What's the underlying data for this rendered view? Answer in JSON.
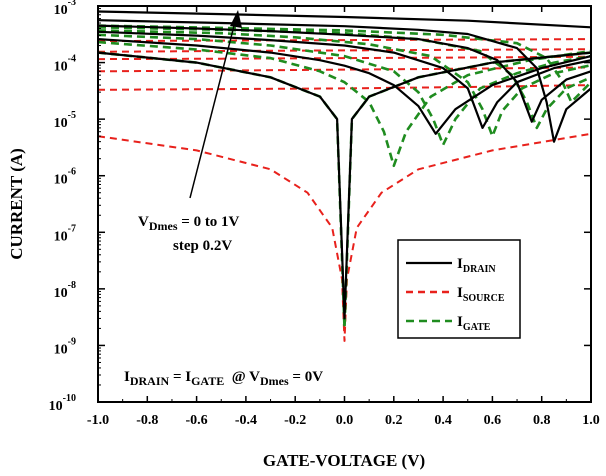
{
  "chart_data": {
    "type": "line",
    "title": "",
    "xlabel": "GATE-VOLTAGE (V)",
    "ylabel": "CURRENT (A)",
    "xlim": [
      -1.0,
      1.0
    ],
    "ylim": [
      1e-10,
      0.001
    ],
    "yscale": "log",
    "grid": false,
    "legend_position": "right-middle",
    "x_ticks": [
      "-1.0",
      "-0.8",
      "-0.6",
      "-0.4",
      "-0.2",
      "0.0",
      "0.2",
      "0.4",
      "0.6",
      "0.8",
      "1.0"
    ],
    "y_ticks": [
      {
        "base": "10",
        "exp": "-10"
      },
      {
        "base": "10",
        "exp": "-9"
      },
      {
        "base": "10",
        "exp": "-8"
      },
      {
        "base": "10",
        "exp": "-7"
      },
      {
        "base": "10",
        "exp": "-6"
      },
      {
        "base": "10",
        "exp": "-5"
      },
      {
        "base": "10",
        "exp": "-4"
      },
      {
        "base": "10",
        "exp": "-3"
      }
    ],
    "legend": [
      {
        "main": "I",
        "sub": "DRAIN",
        "color": "#000000",
        "style": "solid"
      },
      {
        "main": "I",
        "sub": "SOURCE",
        "color": "#e8211c",
        "style": "dashed"
      },
      {
        "main": "I",
        "sub": "GATE",
        "color": "#1f8c1f",
        "style": "dashed"
      }
    ],
    "annotations": {
      "vd_main": "V",
      "vd_sub": "Dmes",
      "vd_rest": " = 0 to 1V",
      "step": "step 0.2V",
      "eq_i1": "I",
      "eq_sub1": "DRAIN",
      "eq_mid": " = I",
      "eq_sub2": "GATE",
      "eq_at": "  @ V",
      "eq_sub3": "Dmes",
      "eq_end": " = 0V"
    },
    "colors": {
      "drain": "#000000",
      "source": "#e8211c",
      "gate": "#1f8c1f"
    },
    "series": [
      {
        "group": "drain",
        "vd": 0.0,
        "x": [
          -1.0,
          -0.6,
          -0.3,
          -0.1,
          -0.03,
          0.0,
          0.03,
          0.1,
          0.3,
          0.6,
          1.0
        ],
        "y": [
          0.00015,
          0.0001,
          5.5e-05,
          2.5e-05,
          1e-05,
          3e-09,
          1e-05,
          2.5e-05,
          5.5e-05,
          0.0001,
          0.00015
        ]
      },
      {
        "group": "drain",
        "vd": 0.2,
        "x": [
          -1.0,
          -0.6,
          -0.3,
          -0.1,
          0.0,
          0.1,
          0.2,
          0.3,
          0.37,
          0.45,
          0.6,
          0.8,
          1.0
        ],
        "y": [
          0.00026,
          0.0002,
          0.00015,
          0.00011,
          8.8e-05,
          6.5e-05,
          4e-05,
          1.7e-05,
          5.5e-06,
          1.5e-05,
          4e-05,
          8e-05,
          0.00013
        ]
      },
      {
        "group": "drain",
        "vd": 0.4,
        "x": [
          -1.0,
          -0.6,
          -0.3,
          0.0,
          0.2,
          0.4,
          0.5,
          0.56,
          0.62,
          0.7,
          0.85,
          1.0
        ],
        "y": [
          0.00035,
          0.0003,
          0.00025,
          0.0002,
          0.00015,
          8e-05,
          3.5e-05,
          7e-06,
          2e-05,
          4.5e-05,
          8e-05,
          0.00011
        ]
      },
      {
        "group": "drain",
        "vd": 0.6,
        "x": [
          -1.0,
          -0.6,
          -0.3,
          0.0,
          0.3,
          0.5,
          0.62,
          0.7,
          0.76,
          0.8,
          0.9,
          1.0
        ],
        "y": [
          0.00045,
          0.0004,
          0.00036,
          0.00031,
          0.00026,
          0.00018,
          0.00011,
          4.5e-05,
          9e-06,
          2.2e-05,
          5e-05,
          7e-05
        ]
      },
      {
        "group": "drain",
        "vd": 0.8,
        "x": [
          -1.0,
          -0.5,
          0.0,
          0.3,
          0.5,
          0.7,
          0.78,
          0.82,
          0.85,
          0.9,
          1.0
        ],
        "y": [
          0.00056,
          0.0005,
          0.00044,
          0.00038,
          0.00032,
          0.00018,
          8e-05,
          2e-05,
          4e-06,
          1.5e-05,
          3.5e-05
        ]
      },
      {
        "group": "drain",
        "vd": 1.0,
        "x": [
          -1.0,
          -0.5,
          0.0,
          0.5,
          1.0
        ],
        "y": [
          0.0008,
          0.00072,
          0.00064,
          0.00055,
          0.00042
        ]
      },
      {
        "group": "source",
        "vd": 0.0,
        "x": [
          -1.0,
          -0.6,
          -0.3,
          -0.15,
          -0.05,
          -0.01,
          0.0,
          0.01,
          0.05,
          0.15,
          0.3,
          0.6,
          1.0
        ],
        "y": [
          5e-06,
          2.8e-06,
          1.3e-06,
          5e-07,
          1.2e-07,
          1.5e-08,
          1.2e-09,
          1.5e-08,
          1.2e-07,
          5e-07,
          1.3e-06,
          2.8e-06,
          5.5e-06
        ]
      },
      {
        "group": "source",
        "vd": 0.2,
        "x": [
          -1.0,
          -0.5,
          0.0,
          0.5,
          1.0
        ],
        "y": [
          3.3e-05,
          3.4e-05,
          3.5e-05,
          3.7e-05,
          4e-05
        ]
      },
      {
        "group": "source",
        "vd": 0.4,
        "x": [
          -1.0,
          -0.5,
          0.0,
          0.5,
          1.0
        ],
        "y": [
          7e-05,
          7.2e-05,
          7.5e-05,
          7.8e-05,
          8.2e-05
        ]
      },
      {
        "group": "source",
        "vd": 0.6,
        "x": [
          -1.0,
          -0.5,
          0.0,
          0.5,
          1.0
        ],
        "y": [
          0.000115,
          0.000117,
          0.00012,
          0.000123,
          0.000127
        ]
      },
      {
        "group": "source",
        "vd": 0.8,
        "x": [
          -1.0,
          -0.5,
          0.0,
          0.5,
          1.0
        ],
        "y": [
          0.000155,
          0.00016,
          0.000164,
          0.000168,
          0.000172
        ]
      },
      {
        "group": "source",
        "vd": 1.0,
        "x": [
          -1.0,
          -0.5,
          0.0,
          0.5,
          1.0
        ],
        "y": [
          0.00024,
          0.000245,
          0.00025,
          0.000255,
          0.00026
        ]
      },
      {
        "group": "gate",
        "vd": 0.0,
        "x": [
          -1.0,
          -0.6,
          -0.3,
          -0.1,
          -0.03,
          0.0,
          0.03,
          0.1,
          0.3,
          0.6,
          1.0
        ],
        "y": [
          0.00015,
          0.0001,
          5.5e-05,
          2.5e-05,
          1e-05,
          2e-09,
          1e-05,
          2.5e-05,
          5.5e-05,
          0.0001,
          0.00015
        ]
      },
      {
        "group": "gate",
        "vd": 0.2,
        "x": [
          -1.0,
          -0.6,
          -0.3,
          -0.1,
          0.0,
          0.1,
          0.16,
          0.2,
          0.25,
          0.35,
          0.5,
          0.75,
          1.0
        ],
        "y": [
          0.00023,
          0.00017,
          0.00012,
          7e-05,
          4.5e-05,
          2e-05,
          6e-06,
          1.5e-06,
          6e-06,
          2.5e-05,
          6e-05,
          0.00011,
          0.00016
        ]
      },
      {
        "group": "gate",
        "vd": 0.4,
        "x": [
          -1.0,
          -0.6,
          -0.3,
          0.0,
          0.2,
          0.3,
          0.36,
          0.4,
          0.45,
          0.55,
          0.7,
          0.85,
          1.0
        ],
        "y": [
          0.00031,
          0.00026,
          0.0002,
          0.00013,
          7e-05,
          3e-05,
          1e-05,
          3.5e-06,
          1e-05,
          3.5e-05,
          6.5e-05,
          0.0001,
          0.00013
        ]
      },
      {
        "group": "gate",
        "vd": 0.6,
        "x": [
          -1.0,
          -0.5,
          -0.2,
          0.1,
          0.35,
          0.5,
          0.56,
          0.6,
          0.64,
          0.72,
          0.85,
          1.0
        ],
        "y": [
          0.00037,
          0.00033,
          0.00028,
          0.00021,
          0.00013,
          4.5e-05,
          1.5e-05,
          5e-06,
          1.4e-05,
          3.5e-05,
          6.5e-05,
          9e-05
        ]
      },
      {
        "group": "gate",
        "vd": 0.8,
        "x": [
          -1.0,
          -0.5,
          0.0,
          0.3,
          0.55,
          0.68,
          0.74,
          0.78,
          0.82,
          0.9,
          1.0
        ],
        "y": [
          0.00042,
          0.00038,
          0.00033,
          0.00026,
          0.00016,
          6e-05,
          2e-05,
          7e-06,
          1.5e-05,
          3.5e-05,
          5.5e-05
        ]
      },
      {
        "group": "gate",
        "vd": 1.0,
        "x": [
          -1.0,
          -0.5,
          0.0,
          0.4,
          0.7,
          0.82,
          0.88,
          0.92,
          0.96,
          1.0
        ],
        "y": [
          0.00045,
          0.00041,
          0.00037,
          0.00031,
          0.00022,
          0.00012,
          5e-05,
          2e-05,
          3e-05,
          4.5e-05
        ]
      }
    ]
  }
}
